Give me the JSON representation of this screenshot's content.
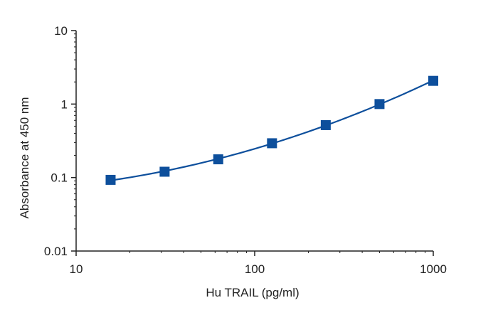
{
  "chart_data": {
    "type": "scatter",
    "xlabel": "Hu TRAIL (pg/ml)",
    "ylabel": "Absorbance at 450 nm",
    "x_scale": "log",
    "y_scale": "log",
    "xlim": [
      10,
      1000
    ],
    "ylim": [
      0.01,
      10
    ],
    "x_ticks": [
      "10",
      "100",
      "1000"
    ],
    "y_ticks": [
      "0.01",
      "0.1",
      "1",
      "10"
    ],
    "grid": false,
    "legend": "none",
    "series": [
      {
        "x": [
          15.6,
          31.3,
          62.5,
          125,
          250,
          500,
          1000
        ],
        "y": [
          0.093,
          0.12,
          0.177,
          0.293,
          0.517,
          1.0,
          2.07
        ],
        "marker": "square",
        "fitted_curve": true
      }
    ],
    "colors": {
      "series": "#0d4f9c",
      "axis": "#222222"
    }
  }
}
